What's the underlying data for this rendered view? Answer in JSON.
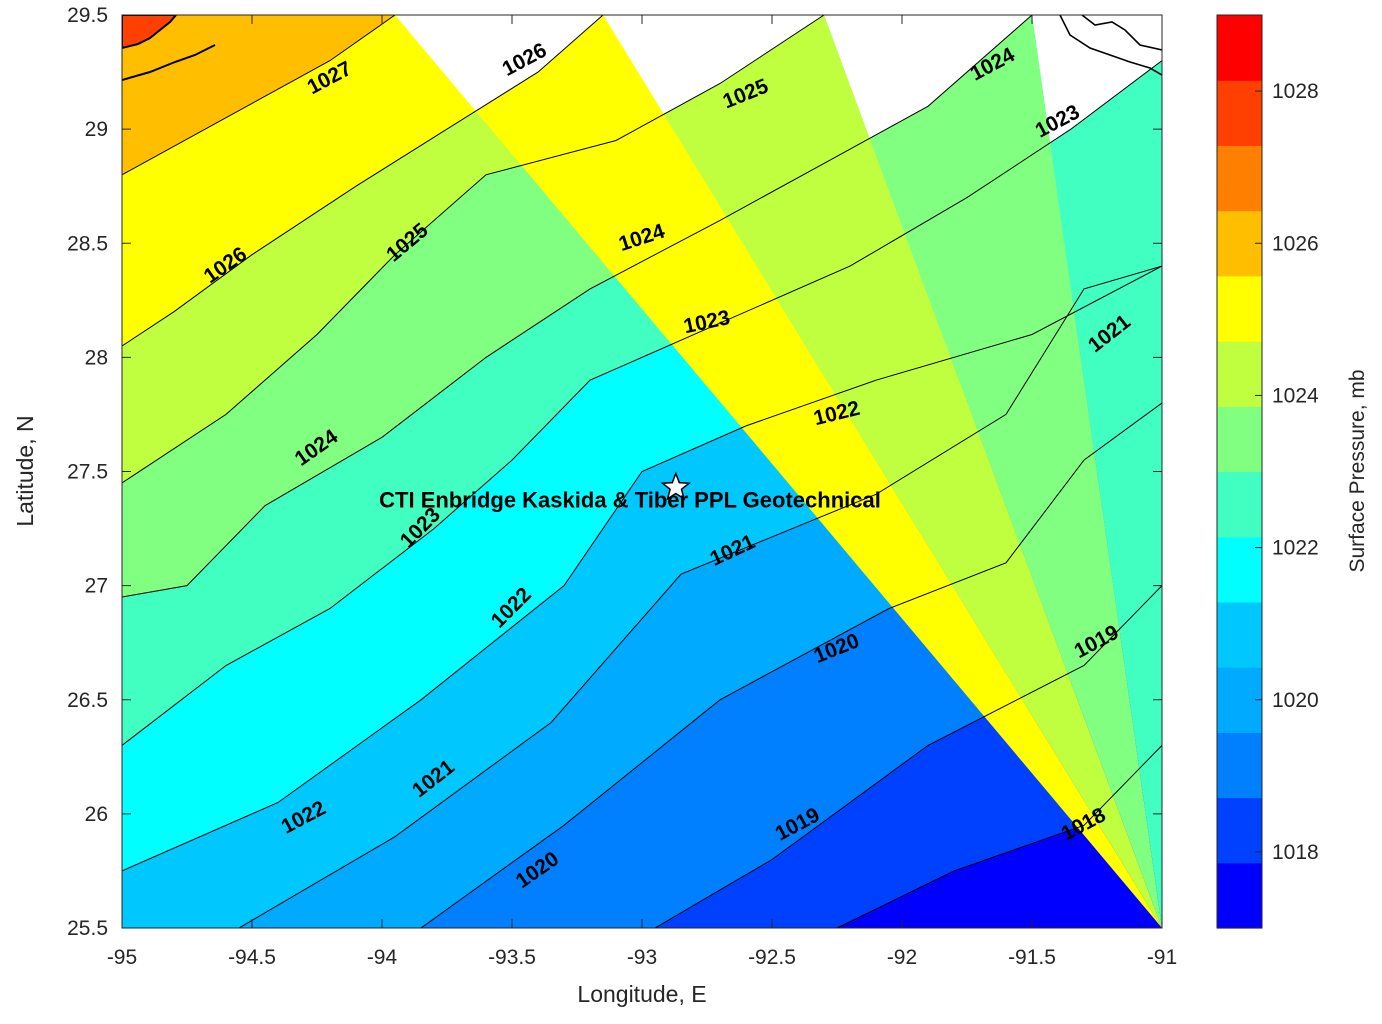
{
  "chart_data": {
    "type": "contour",
    "title": "",
    "xlabel": "Longitude, E",
    "ylabel": "Latitude, N",
    "xlim": [
      -95,
      -91
    ],
    "ylim": [
      25.5,
      29.5
    ],
    "xticks": [
      "-95",
      "-94.5",
      "-94",
      "-93.5",
      "-93",
      "-92.5",
      "-92",
      "-91.5",
      "-91"
    ],
    "yticks": [
      "25.5",
      "26",
      "26.5",
      "27",
      "27.5",
      "28",
      "28.5",
      "29",
      "29.5"
    ],
    "colorbar": {
      "title": "Surface Pressure, mb",
      "range": [
        1017,
        1029
      ],
      "ticks": [
        "1018",
        "1020",
        "1022",
        "1024",
        "1026",
        "1028"
      ],
      "colors": [
        "#0000ff",
        "#0040ff",
        "#0080ff",
        "#00aaff",
        "#00c8ff",
        "#00ffff",
        "#40ffc0",
        "#80ff80",
        "#c0ff40",
        "#ffff00",
        "#ffbf00",
        "#ff8000",
        "#ff4000",
        "#ff0000"
      ]
    },
    "isobars": [
      {
        "level": 1018,
        "points": [
          [
            -92.25,
            25.5
          ],
          [
            -91.8,
            25.75
          ],
          [
            -91.3,
            25.95
          ],
          [
            -91,
            26.3
          ]
        ]
      },
      {
        "level": 1019,
        "points": [
          [
            -92.95,
            25.5
          ],
          [
            -92.5,
            25.8
          ],
          [
            -91.9,
            26.3
          ],
          [
            -91.3,
            26.65
          ],
          [
            -91,
            27
          ]
        ]
      },
      {
        "level": 1020,
        "points": [
          [
            -93.85,
            25.5
          ],
          [
            -93.3,
            25.95
          ],
          [
            -92.7,
            26.5
          ],
          [
            -92.05,
            26.9
          ],
          [
            -91.6,
            27.1
          ],
          [
            -91.3,
            27.55
          ],
          [
            -91,
            27.8
          ]
        ]
      },
      {
        "level": 1021,
        "points": [
          [
            -94.55,
            25.5
          ],
          [
            -93.95,
            25.9
          ],
          [
            -93.35,
            26.4
          ],
          [
            -92.85,
            27.05
          ],
          [
            -92.1,
            27.4
          ],
          [
            -91.6,
            27.75
          ],
          [
            -91.3,
            28.3
          ],
          [
            -91,
            28.4
          ]
        ]
      },
      {
        "level": 1022,
        "points": [
          [
            -95,
            25.75
          ],
          [
            -94.4,
            26.05
          ],
          [
            -93.85,
            26.5
          ],
          [
            -93.3,
            27.0
          ],
          [
            -93.0,
            27.5
          ],
          [
            -92.6,
            27.7
          ],
          [
            -92.1,
            27.9
          ],
          [
            -91.5,
            28.1
          ],
          [
            -91,
            28.4
          ]
        ]
      },
      {
        "level": 1023,
        "points": [
          [
            -95,
            26.3
          ],
          [
            -94.6,
            26.65
          ],
          [
            -94.2,
            26.9
          ],
          [
            -93.8,
            27.25
          ],
          [
            -93.5,
            27.55
          ],
          [
            -93.2,
            27.9
          ],
          [
            -92.7,
            28.15
          ],
          [
            -92.2,
            28.4
          ],
          [
            -91.75,
            28.7
          ],
          [
            -91.35,
            29.0
          ],
          [
            -91,
            29.3
          ]
        ]
      },
      {
        "level": 1024,
        "points": [
          [
            -95,
            26.95
          ],
          [
            -94.75,
            27.0
          ],
          [
            -94.45,
            27.35
          ],
          [
            -94.0,
            27.65
          ],
          [
            -93.6,
            28.0
          ],
          [
            -93.2,
            28.3
          ],
          [
            -92.7,
            28.6
          ],
          [
            -92.3,
            28.85
          ],
          [
            -91.9,
            29.1
          ],
          [
            -91.5,
            29.5
          ]
        ]
      },
      {
        "level": 1025,
        "points": [
          [
            -95,
            27.45
          ],
          [
            -94.6,
            27.75
          ],
          [
            -94.25,
            28.1
          ],
          [
            -93.95,
            28.45
          ],
          [
            -93.6,
            28.8
          ],
          [
            -93.1,
            28.95
          ],
          [
            -92.7,
            29.2
          ],
          [
            -92.3,
            29.5
          ]
        ]
      },
      {
        "level": 1026,
        "points": [
          [
            -95,
            28.05
          ],
          [
            -94.8,
            28.2
          ],
          [
            -94.5,
            28.45
          ],
          [
            -94.1,
            28.75
          ],
          [
            -93.75,
            29.0
          ],
          [
            -93.4,
            29.25
          ],
          [
            -93.15,
            29.5
          ]
        ]
      },
      {
        "level": 1027,
        "points": [
          [
            -95,
            28.8
          ],
          [
            -94.6,
            29.05
          ],
          [
            -94.2,
            29.3
          ],
          [
            -93.95,
            29.5
          ]
        ]
      }
    ],
    "contour_labels": [
      {
        "text": "1018",
        "x": -91.3,
        "y": 25.95,
        "angle": -28
      },
      {
        "text": "1019",
        "x": -92.4,
        "y": 25.95,
        "angle": -28
      },
      {
        "text": "1019",
        "x": -91.25,
        "y": 26.75,
        "angle": -28
      },
      {
        "text": "1020",
        "x": -93.4,
        "y": 25.75,
        "angle": -35
      },
      {
        "text": "1020",
        "x": -92.25,
        "y": 26.72,
        "angle": -22
      },
      {
        "text": "1021",
        "x": -93.8,
        "y": 26.15,
        "angle": -38
      },
      {
        "text": "1021",
        "x": -92.65,
        "y": 27.15,
        "angle": -25
      },
      {
        "text": "1021",
        "x": -91.2,
        "y": 28.1,
        "angle": -38
      },
      {
        "text": "1022",
        "x": -94.3,
        "y": 25.98,
        "angle": -28
      },
      {
        "text": "1022",
        "x": -93.5,
        "y": 26.9,
        "angle": -45
      },
      {
        "text": "1022",
        "x": -92.25,
        "y": 27.75,
        "angle": -14
      },
      {
        "text": "1023",
        "x": -93.85,
        "y": 27.25,
        "angle": -45
      },
      {
        "text": "1023",
        "x": -92.75,
        "y": 28.15,
        "angle": -12
      },
      {
        "text": "1023",
        "x": -91.4,
        "y": 29.03,
        "angle": -28
      },
      {
        "text": "1024",
        "x": -94.25,
        "y": 27.6,
        "angle": -35
      },
      {
        "text": "1024",
        "x": -93.0,
        "y": 28.52,
        "angle": -18
      },
      {
        "text": "1024",
        "x": -91.65,
        "y": 29.28,
        "angle": -28
      },
      {
        "text": "1025",
        "x": -93.9,
        "y": 28.5,
        "angle": -40
      },
      {
        "text": "1025",
        "x": -92.6,
        "y": 29.15,
        "angle": -22
      },
      {
        "text": "1026",
        "x": -94.6,
        "y": 28.4,
        "angle": -35
      },
      {
        "text": "1026",
        "x": -93.45,
        "y": 29.3,
        "angle": -28
      },
      {
        "text": "1027",
        "x": -94.2,
        "y": 29.22,
        "angle": -28
      }
    ],
    "site": {
      "label": "CTI Enbridge  Kaskida & Tiber PPL Geotechnical",
      "x": -92.87,
      "y": 27.43
    },
    "legend": "none"
  }
}
